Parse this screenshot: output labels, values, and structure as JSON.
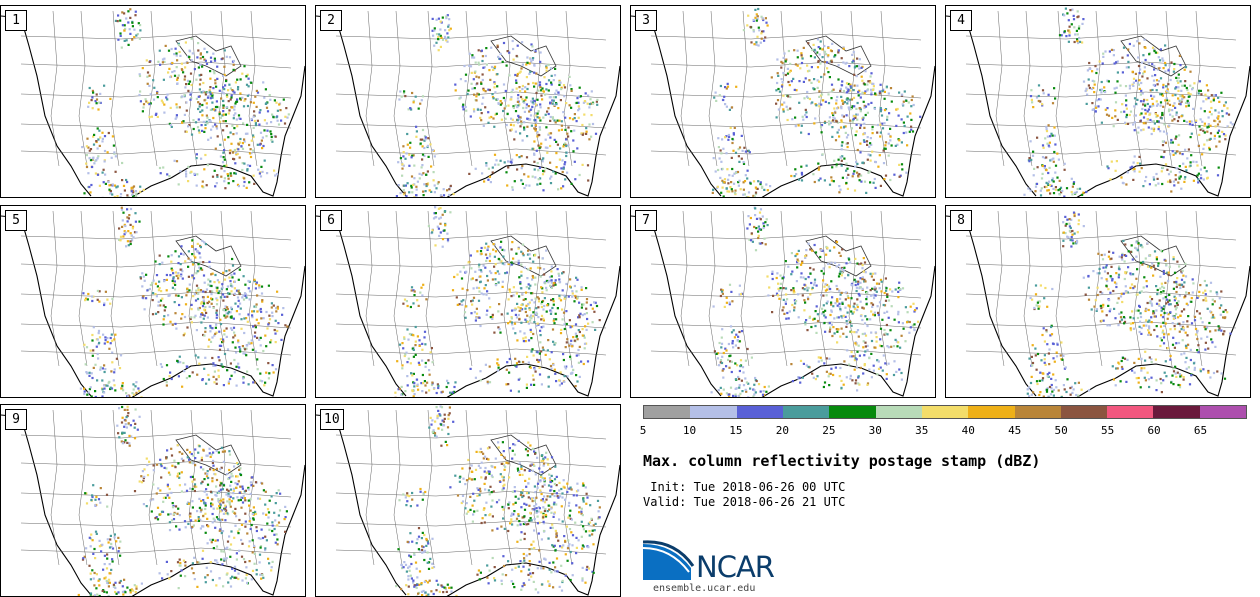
{
  "panels": [
    {
      "label": "1"
    },
    {
      "label": "2"
    },
    {
      "label": "3"
    },
    {
      "label": "4"
    },
    {
      "label": "5"
    },
    {
      "label": "6"
    },
    {
      "label": "7"
    },
    {
      "label": "8"
    },
    {
      "label": "9"
    },
    {
      "label": "10"
    }
  ],
  "colorbar": {
    "colors": [
      "#a0a0a0",
      "#b4bfe7",
      "#5960d6",
      "#4a9c9c",
      "#078a0d",
      "#b8dbb8",
      "#f3dd6a",
      "#eeb018",
      "#b98538",
      "#8b5540",
      "#f2577f",
      "#6a1a3c",
      "#ad4fae"
    ],
    "ticks": [
      "5",
      "10",
      "15",
      "20",
      "25",
      "30",
      "35",
      "40",
      "45",
      "50",
      "55",
      "60",
      "65"
    ]
  },
  "title": "Max. column reflectivity postage stamp (dBZ)",
  "init": " Init: Tue 2018-06-26 00 UTC",
  "valid": "Valid: Tue 2018-06-26 21 UTC",
  "logo": {
    "text": "NCAR",
    "icon": "ncar-logo-icon"
  },
  "website": "ensemble.ucar.edu"
}
